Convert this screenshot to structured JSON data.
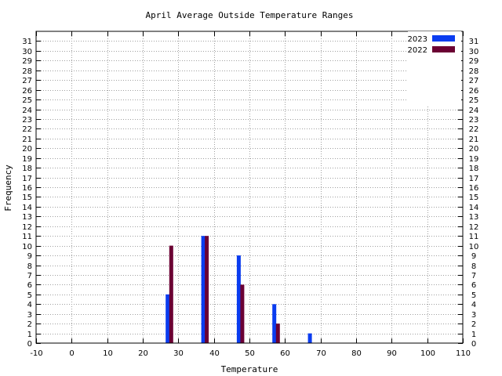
{
  "chart_data": {
    "type": "bar",
    "title": "April Average Outside Temperature Ranges",
    "xlabel": "Temperature",
    "ylabel": "Frequency",
    "xlim": [
      -10,
      110
    ],
    "ylim": [
      0,
      32
    ],
    "x_ticks": [
      -10,
      0,
      10,
      20,
      30,
      40,
      50,
      60,
      70,
      80,
      90,
      100,
      110
    ],
    "y_ticks": [
      0,
      1,
      2,
      3,
      4,
      5,
      6,
      7,
      8,
      9,
      10,
      11,
      12,
      13,
      14,
      15,
      16,
      17,
      18,
      19,
      20,
      21,
      22,
      23,
      24,
      25,
      26,
      27,
      28,
      29,
      30,
      31
    ],
    "grid": true,
    "legend_position": "top-right",
    "series": [
      {
        "name": "2023",
        "color": "#0a3cf0",
        "points": [
          {
            "x": 27,
            "y": 5
          },
          {
            "x": 37,
            "y": 11
          },
          {
            "x": 47,
            "y": 9
          },
          {
            "x": 57,
            "y": 4
          },
          {
            "x": 67,
            "y": 1
          }
        ]
      },
      {
        "name": "2022",
        "color": "#6b0033",
        "points": [
          {
            "x": 28,
            "y": 10
          },
          {
            "x": 38,
            "y": 11
          },
          {
            "x": 48,
            "y": 6
          },
          {
            "x": 58,
            "y": 2
          }
        ]
      }
    ]
  }
}
